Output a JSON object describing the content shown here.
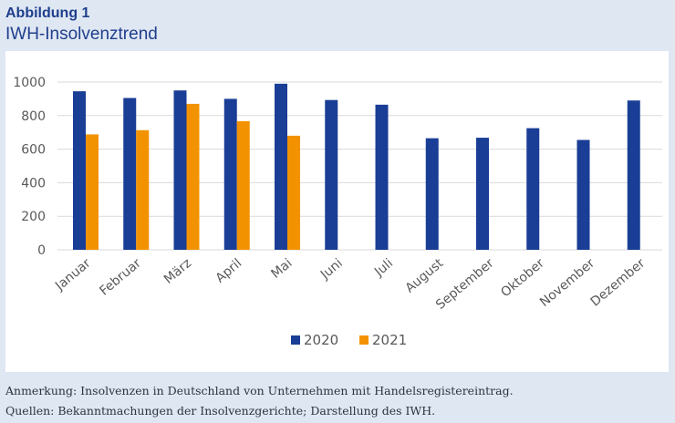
{
  "figure": {
    "label": "Abbildung 1",
    "title": "IWH-Insolvenztrend"
  },
  "notes": {
    "remark": "Anmerkung: Insolvenzen in Deutschland von Unternehmen mit Handelsregistereintrag.",
    "sources": "Quellen: Bekanntmachungen der Insolvenzgerichte; Darstellung des IWH."
  },
  "colors": {
    "series_2020": "#1a3e96",
    "series_2021": "#f39200",
    "grid": "#d9d9d9",
    "axis_text": "#595959"
  },
  "chart_data": {
    "type": "bar",
    "title": "IWH-Insolvenztrend",
    "xlabel": "",
    "ylabel": "",
    "ylim": [
      0,
      1000
    ],
    "yticks": [
      0,
      200,
      400,
      600,
      800,
      1000
    ],
    "grid": true,
    "legend_position": "bottom",
    "categories": [
      "Januar",
      "Februar",
      "März",
      "April",
      "Mai",
      "Juni",
      "Juli",
      "August",
      "September",
      "Oktober",
      "November",
      "Dezember"
    ],
    "series": [
      {
        "name": "2020",
        "values": [
          945,
          905,
          950,
          900,
          990,
          893,
          865,
          665,
          668,
          725,
          655,
          890
        ]
      },
      {
        "name": "2021",
        "values": [
          688,
          713,
          870,
          767,
          680,
          null,
          null,
          null,
          null,
          null,
          null,
          null
        ]
      }
    ]
  }
}
